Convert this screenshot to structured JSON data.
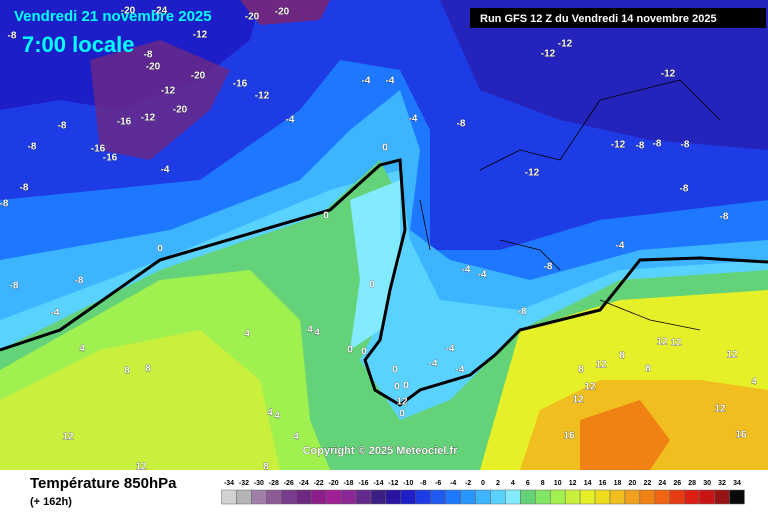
{
  "header": {
    "date": "Vendredi 21 novembre 2025",
    "time": "7:00 locale",
    "run": "Run GFS 12 Z du Vendredi 14 novembre 2025"
  },
  "copyright": "Copyright © 2025 Meteociel.fr",
  "footer": {
    "title": "Température 850hPa",
    "lead": "(+ 162h)"
  },
  "legend": {
    "ticks": [
      -34,
      -32,
      -30,
      -28,
      -26,
      -24,
      -22,
      -20,
      -18,
      -16,
      -14,
      -12,
      -10,
      -8,
      -6,
      -4,
      -2,
      0,
      2,
      4,
      6,
      8,
      10,
      12,
      14,
      16,
      18,
      20,
      22,
      24,
      26,
      28,
      30,
      32,
      34
    ],
    "colors": [
      "#d2d2d2",
      "#b4b4b4",
      "#a080a8",
      "#8c5a96",
      "#783c8c",
      "#6e2882",
      "#8c1e8c",
      "#a01e96",
      "#8c2896",
      "#64288c",
      "#3c1e82",
      "#2814a0",
      "#1e1ec8",
      "#1e3ce6",
      "#1e5af0",
      "#1e78ff",
      "#2896ff",
      "#3cb4ff",
      "#5ad2ff",
      "#82ebff",
      "#64d278",
      "#82e664",
      "#a0f050",
      "#c8f03c",
      "#e6f028",
      "#f0dc1e",
      "#f0be1e",
      "#f0a01e",
      "#f08214",
      "#f06414",
      "#e63c14",
      "#dc1e14",
      "#c81414",
      "#961414",
      "#0a0a0a"
    ]
  },
  "contour_labels": [
    -20,
    -24,
    -20,
    -20,
    -12,
    -8,
    -8,
    -20,
    -20,
    -16,
    -12,
    -12,
    -20,
    -16,
    -12,
    -8,
    -8,
    -16,
    -16,
    -4,
    -8,
    -8,
    -4,
    -4,
    -4,
    -4,
    0,
    -8,
    -12,
    -12,
    -12,
    -12,
    -8,
    -8,
    -8,
    -12,
    -8,
    -8,
    -8,
    -4,
    -4,
    -4,
    -8,
    -8,
    -4,
    0,
    0,
    0,
    4,
    4,
    4,
    4,
    8,
    8,
    12,
    12,
    12,
    0,
    0,
    0,
    0,
    0,
    0,
    -4,
    -4,
    -4,
    -8,
    4,
    4,
    4,
    8,
    8,
    12,
    12,
    12,
    12,
    12,
    12,
    12,
    16,
    16,
    4,
    8,
    8
  ]
}
